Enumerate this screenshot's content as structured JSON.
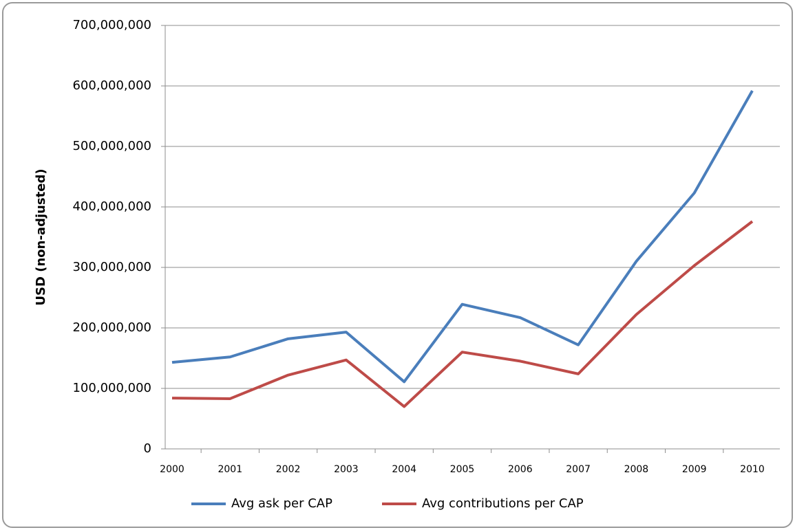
{
  "chart_data": {
    "type": "line",
    "y_label": "USD (non-adjusted)",
    "categories": [
      "2000",
      "2001",
      "2002",
      "2003",
      "2004",
      "2005",
      "2006",
      "2007",
      "2008",
      "2009",
      "2010"
    ],
    "series": [
      {
        "name": "Avg ask per CAP",
        "color": "#4a7ebb",
        "values": [
          143000000,
          152000000,
          182000000,
          193000000,
          111000000,
          239000000,
          217000000,
          172000000,
          310000000,
          423000000,
          592000000
        ]
      },
      {
        "name": "Avg contributions per CAP",
        "color": "#be4b48",
        "values": [
          84000000,
          83000000,
          122000000,
          147000000,
          70000000,
          160000000,
          145000000,
          124000000,
          222000000,
          303000000,
          376000000
        ]
      }
    ],
    "ylim": [
      0,
      700000000
    ],
    "yticks": [
      0,
      {
        "value": 100000000,
        "label": "100,000,000"
      },
      {
        "value": 200000000,
        "label": "200,000,000"
      },
      {
        "value": 300000000,
        "label": "300,000,000"
      },
      {
        "value": 400000000,
        "label": "400,000,000"
      },
      {
        "value": 500000000,
        "label": "500,000,000"
      },
      {
        "value": 600000000,
        "label": "600,000,000"
      },
      {
        "value": 700000000,
        "label": "700,000,000"
      }
    ],
    "grid": true,
    "legend": "bottom"
  }
}
